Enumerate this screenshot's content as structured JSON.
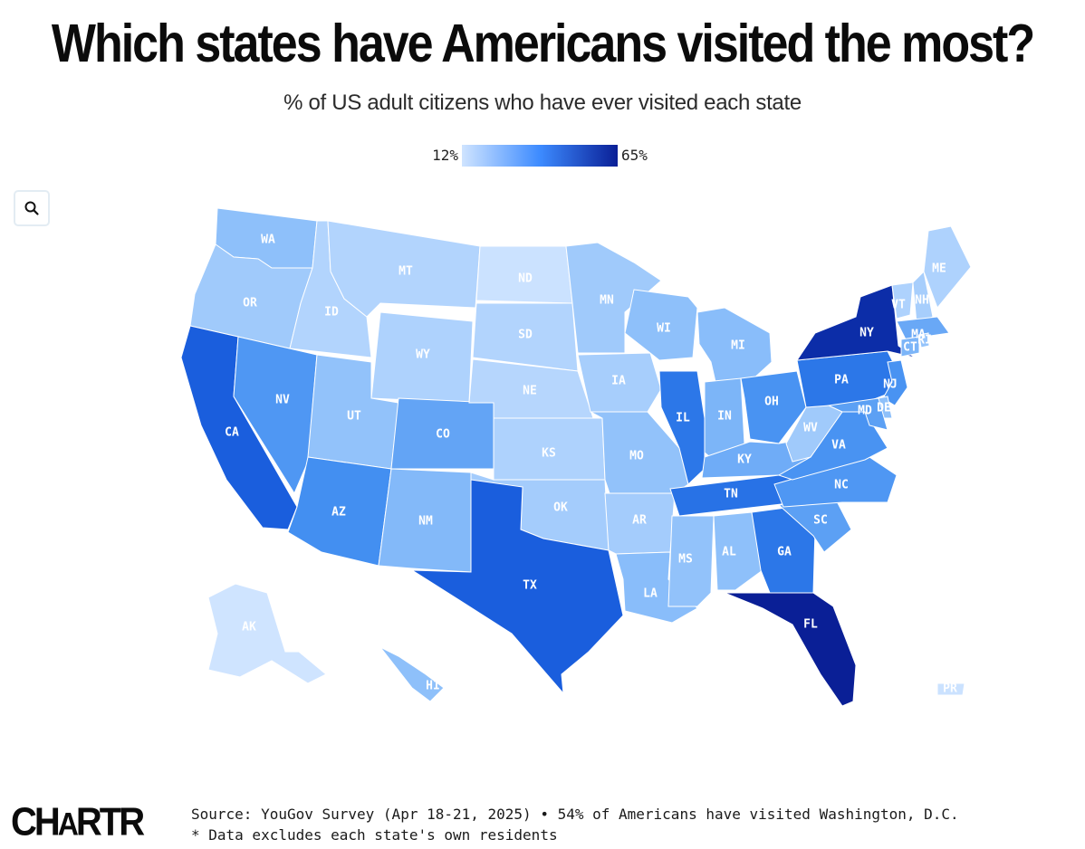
{
  "header": {
    "title": "Which states have Americans visited the most?",
    "subtitle": "% of US adult citizens who have ever visited each state"
  },
  "legend": {
    "min_label": "12%",
    "max_label": "65%",
    "min_value": 12,
    "max_value": 65,
    "color_min": "#cfe4ff",
    "color_max": "#0a1f96"
  },
  "controls": {
    "zoom_icon": "magnifier-icon"
  },
  "map_data": {
    "type": "choropleth",
    "note": "Shading is estimated from colour",
    "states": [
      {
        "code": "WA",
        "value": 30
      },
      {
        "code": "OR",
        "value": 25
      },
      {
        "code": "CA",
        "value": 52
      },
      {
        "code": "NV",
        "value": 40
      },
      {
        "code": "ID",
        "value": 20
      },
      {
        "code": "MT",
        "value": 20
      },
      {
        "code": "WY",
        "value": 21
      },
      {
        "code": "UT",
        "value": 29
      },
      {
        "code": "CO",
        "value": 37
      },
      {
        "code": "AZ",
        "value": 42
      },
      {
        "code": "NM",
        "value": 32
      },
      {
        "code": "ND",
        "value": 13
      },
      {
        "code": "SD",
        "value": 20
      },
      {
        "code": "NE",
        "value": 19
      },
      {
        "code": "KS",
        "value": 21
      },
      {
        "code": "OK",
        "value": 24
      },
      {
        "code": "TX",
        "value": 52
      },
      {
        "code": "MN",
        "value": 25
      },
      {
        "code": "IA",
        "value": 23
      },
      {
        "code": "MO",
        "value": 29
      },
      {
        "code": "AR",
        "value": 24
      },
      {
        "code": "LA",
        "value": 31
      },
      {
        "code": "WI",
        "value": 30
      },
      {
        "code": "IL",
        "value": 47
      },
      {
        "code": "MI",
        "value": 31
      },
      {
        "code": "IN",
        "value": 33
      },
      {
        "code": "OH",
        "value": 41
      },
      {
        "code": "KY",
        "value": 35
      },
      {
        "code": "TN",
        "value": 48
      },
      {
        "code": "MS",
        "value": 29
      },
      {
        "code": "AL",
        "value": 30
      },
      {
        "code": "GA",
        "value": 47
      },
      {
        "code": "FL",
        "value": 65
      },
      {
        "code": "SC",
        "value": 38
      },
      {
        "code": "NC",
        "value": 40
      },
      {
        "code": "VA",
        "value": 41
      },
      {
        "code": "WV",
        "value": 25
      },
      {
        "code": "PA",
        "value": 47
      },
      {
        "code": "NY",
        "value": 62
      },
      {
        "code": "VT",
        "value": 21
      },
      {
        "code": "NH",
        "value": 23
      },
      {
        "code": "ME",
        "value": 21
      },
      {
        "code": "MA",
        "value": 36
      },
      {
        "code": "CT",
        "value": 33
      },
      {
        "code": "RI",
        "value": 28
      },
      {
        "code": "NJ",
        "value": 41
      },
      {
        "code": "DE",
        "value": 30
      },
      {
        "code": "MD",
        "value": 38
      },
      {
        "code": "AK",
        "value": 12
      },
      {
        "code": "HI",
        "value": 30
      },
      {
        "code": "PR",
        "value": 13
      }
    ]
  },
  "footer": {
    "logo": {
      "part1": "CH",
      "part2": "A",
      "part3": "RTR"
    },
    "source_line": "Source: YouGov Survey (Apr 18-21, 2025) • 54% of Americans have visited Washington, D.C.",
    "note_line": "* Data excludes each state's own residents"
  }
}
